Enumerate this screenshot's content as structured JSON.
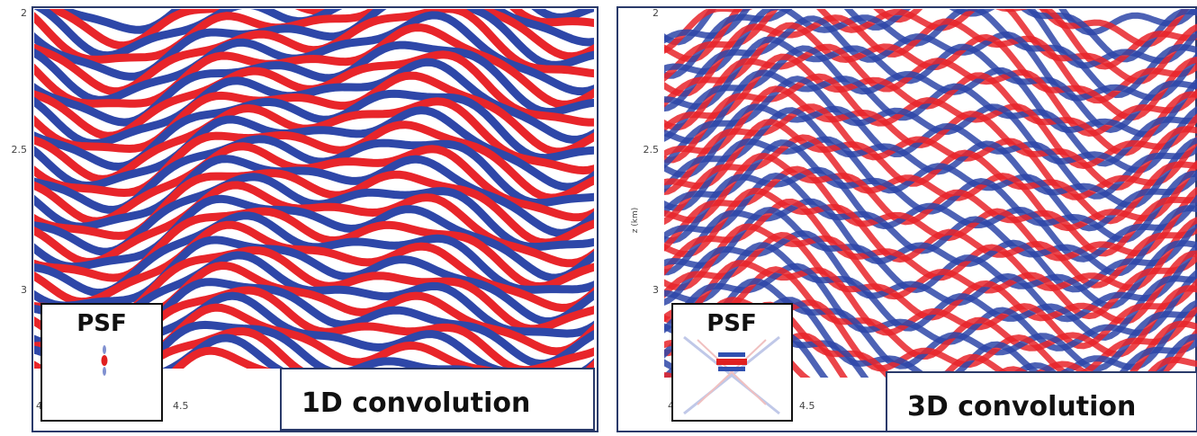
{
  "panels": [
    {
      "label": "1D convolution",
      "inset_label": "PSF",
      "yticks": [
        "2",
        "2.5",
        "3"
      ],
      "xticks": [
        "4",
        "4.5"
      ]
    },
    {
      "label": "3D convolution",
      "inset_label": "PSF",
      "yticks": [
        "2",
        "2.5",
        "3"
      ],
      "xticks": [
        "4",
        "4.5"
      ],
      "axis_label": "z (km)"
    }
  ]
}
